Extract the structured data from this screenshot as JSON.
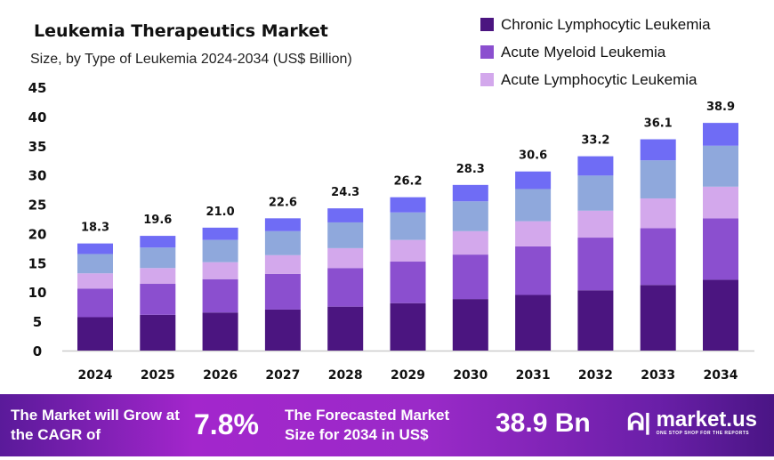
{
  "chart_data": {
    "type": "bar",
    "stacked": true,
    "title": "Leukemia Therapeutics Market",
    "subtitle": "Size, by Type of Leukemia 2024-2034 (US$ Billion)",
    "categories": [
      "2024",
      "2025",
      "2026",
      "2027",
      "2028",
      "2029",
      "2030",
      "2031",
      "2032",
      "2033",
      "2034"
    ],
    "ylim": [
      0,
      45
    ],
    "yticks": [
      0,
      5,
      10,
      15,
      20,
      25,
      30,
      35,
      40,
      45
    ],
    "grid": false,
    "legend_position": "top-right",
    "series": [
      {
        "name": "Chronic Lymphocytic Leukemia",
        "color": "#4b1580",
        "values": [
          5.7,
          6.1,
          6.5,
          7.0,
          7.5,
          8.1,
          8.8,
          9.5,
          10.3,
          11.2,
          12.1
        ]
      },
      {
        "name": "Acute Myeloid Leukemia",
        "color": "#8b4fcf",
        "values": [
          4.9,
          5.3,
          5.7,
          6.1,
          6.6,
          7.1,
          7.6,
          8.3,
          9.0,
          9.7,
          10.5
        ]
      },
      {
        "name": "Acute Lymphocytic Leukemia",
        "color": "#d3a8ec",
        "values": [
          2.6,
          2.7,
          2.9,
          3.2,
          3.4,
          3.7,
          4.0,
          4.3,
          4.6,
          5.1,
          5.4
        ]
      },
      {
        "color": "#8fa8dc",
        "values": [
          3.3,
          3.5,
          3.8,
          4.1,
          4.4,
          4.7,
          5.1,
          5.5,
          6.0,
          6.5,
          7.0
        ]
      },
      {
        "color": "#6f6cf5",
        "values": [
          1.8,
          2.0,
          2.1,
          2.2,
          2.4,
          2.6,
          2.8,
          3.0,
          3.3,
          3.6,
          3.9
        ]
      }
    ],
    "totals": [
      "18.3",
      "19.6",
      "21.0",
      "22.6",
      "24.3",
      "26.2",
      "28.3",
      "30.6",
      "33.2",
      "36.1",
      "38.9"
    ]
  },
  "banner": {
    "cagr_label": "The Market will Grow at the CAGR of",
    "cagr_value": "7.8%",
    "forecast_label": "The Forecasted Market Size for 2034 in US$",
    "forecast_value": "38.9 Bn",
    "logo_name": "market.us",
    "logo_tagline": "ONE STOP SHOP FOR THE REPORTS"
  }
}
